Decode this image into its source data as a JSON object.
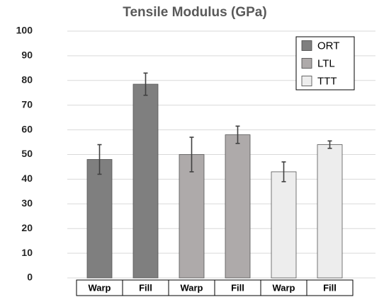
{
  "chart_data": {
    "type": "bar",
    "title": "Tensile Modulus (GPa)",
    "categories": [
      "Warp",
      "Fill",
      "Warp",
      "Fill",
      "Warp",
      "Fill"
    ],
    "series": [
      {
        "name": "ORT",
        "color": "#7f7f7f",
        "values": [
          48,
          78.5,
          null,
          null,
          null,
          null
        ],
        "errors": [
          6,
          4.5,
          null,
          null,
          null,
          null
        ]
      },
      {
        "name": "LTL",
        "color": "#aeaaaa",
        "values": [
          null,
          null,
          50,
          58,
          null,
          null
        ],
        "errors": [
          null,
          null,
          7,
          3.5,
          null,
          null
        ]
      },
      {
        "name": "TTT",
        "color": "#ededed",
        "values": [
          null,
          null,
          null,
          null,
          43,
          54
        ],
        "errors": [
          null,
          null,
          null,
          null,
          4,
          1.5
        ]
      }
    ],
    "ylim": [
      0,
      100
    ],
    "yticks": [
      0,
      10,
      20,
      30,
      40,
      50,
      60,
      70,
      80,
      90,
      100
    ],
    "grid": true,
    "legend": "upper right"
  }
}
